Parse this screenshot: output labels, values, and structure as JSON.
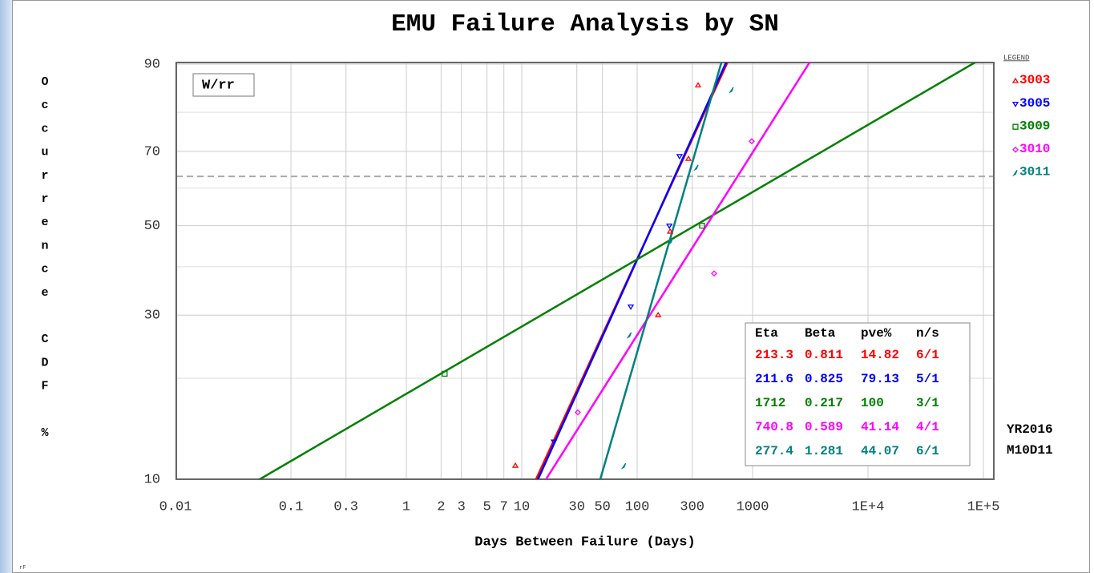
{
  "chart_data": {
    "type": "weibull",
    "title": "EMU Failure Analysis by SN",
    "xlabel": "Days Between Failure (Days)",
    "ylabel": "Occurrence CDF %",
    "method": "W/rr",
    "legend_title": "LEGEND",
    "date_year": "YR2016",
    "date_day": "M10D11",
    "footer": "rF",
    "x_scale": "log",
    "y_scale": "weibull",
    "xlim": [
      0.01,
      100000
    ],
    "ylim": [
      10,
      90
    ],
    "xticks": [
      0.01,
      0.1,
      0.3,
      1,
      2,
      3,
      5,
      7,
      10,
      30,
      50,
      100,
      300,
      1000,
      {
        "value": 10000,
        "label": "1E+4"
      },
      {
        "value": 100000,
        "label": "1E+5"
      }
    ],
    "yticks": [
      10,
      30,
      50,
      70,
      90
    ],
    "y_minor_grid": [
      20,
      40,
      60,
      80
    ],
    "reference_line": 63.2,
    "grid": true,
    "table_header": [
      "Eta",
      "Beta",
      "pve%",
      "n/s"
    ],
    "series": [
      {
        "name": "3003",
        "color": "#ff0000",
        "marker": "triangle",
        "eta": 213.3,
        "beta": 0.811,
        "pve": 14.82,
        "ns": "6/1",
        "x": [
          8.8,
          152,
          193,
          278,
          337
        ],
        "values": [
          11,
          30,
          48.5,
          68,
          86
        ]
      },
      {
        "name": "3005",
        "color": "#0000ff",
        "marker": "triangle-down",
        "eta": 211.6,
        "beta": 0.825,
        "pve": 79.13,
        "ns": "5/1",
        "x": [
          19,
          88,
          190,
          233
        ],
        "values": [
          13,
          31.6,
          50,
          68.7
        ]
      },
      {
        "name": "3009",
        "color": "#008000",
        "marker": "square",
        "eta": 1712,
        "beta": 0.217,
        "pve": 100,
        "ns": "3/1",
        "x": [
          2.15,
          365
        ],
        "values": [
          20.6,
          50
        ]
      },
      {
        "name": "3010",
        "color": "#ff00ff",
        "marker": "diamond",
        "eta": 740.8,
        "beta": 0.589,
        "pve": 41.14,
        "ns": "4/1",
        "x": [
          30.6,
          464,
          984
        ],
        "values": [
          15.9,
          38.5,
          72.7
        ]
      },
      {
        "name": "3011",
        "color": "#008080",
        "marker": "sliver",
        "eta": 277.4,
        "beta": 1.281,
        "pve": 44.07,
        "ns": "6/1",
        "x": [
          77,
          86,
          196,
          327,
          659
        ],
        "values": [
          11,
          26.5,
          46.1,
          65.7,
          85.1
        ]
      }
    ]
  }
}
